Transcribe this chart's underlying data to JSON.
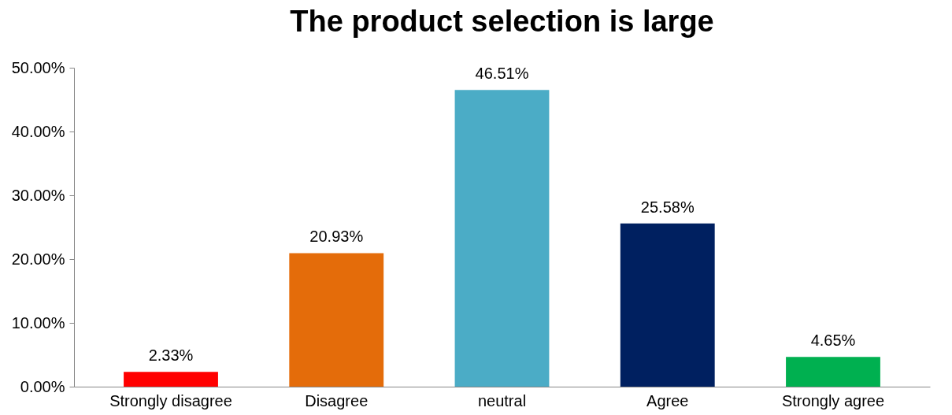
{
  "chart_data": {
    "type": "bar",
    "title": "The product selection is large",
    "categories": [
      "Strongly disagree",
      "Disagree",
      "neutral",
      "Agree",
      "Strongly agree"
    ],
    "values": [
      2.33,
      20.93,
      46.51,
      25.58,
      4.65
    ],
    "colors": [
      "#ff0000",
      "#e46c0a",
      "#4bacc6",
      "#002060",
      "#00b050"
    ],
    "value_labels": [
      "2.33%",
      "20.93%",
      "46.51%",
      "25.58%",
      "4.65%"
    ],
    "ylim": [
      0,
      50
    ],
    "yticks": [
      {
        "value": 0,
        "label": "0.00%"
      },
      {
        "value": 10,
        "label": "10.00%"
      },
      {
        "value": 20,
        "label": "20.00%"
      },
      {
        "value": 30,
        "label": "30.00%"
      },
      {
        "value": 40,
        "label": "40.00%"
      },
      {
        "value": 50,
        "label": "50.00%"
      }
    ],
    "grid": false
  }
}
